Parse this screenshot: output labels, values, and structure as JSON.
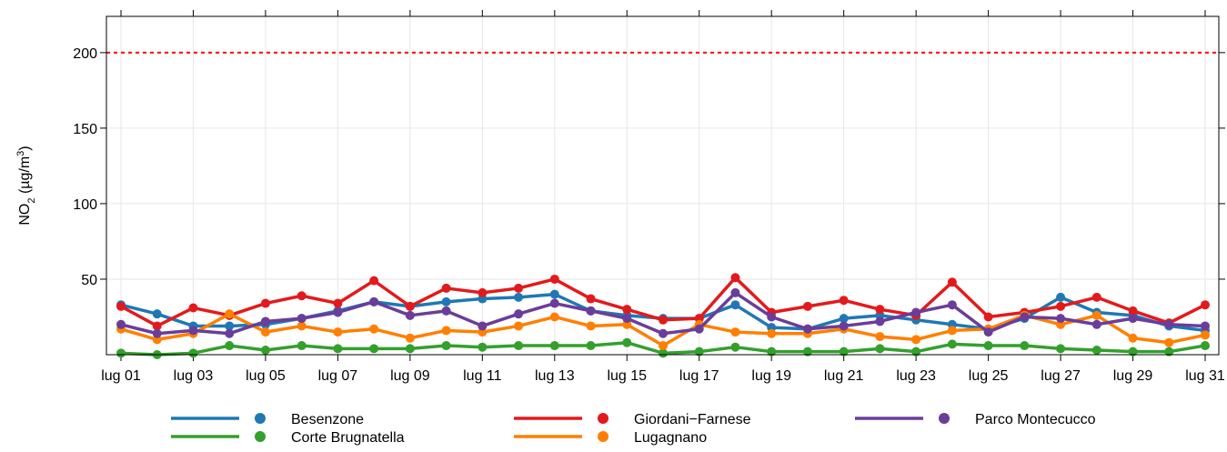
{
  "chart_data": {
    "type": "line",
    "y_label": [
      "NO",
      "2",
      " (µg/m",
      "3",
      ")"
    ],
    "categories": [
      "lug 01",
      null,
      "lug 03",
      null,
      "lug 05",
      null,
      "lug 07",
      null,
      "lug 09",
      null,
      "lug 11",
      null,
      "lug 13",
      null,
      "lug 15",
      null,
      "lug 17",
      null,
      "lug 19",
      null,
      "lug 21",
      null,
      "lug 23",
      null,
      "lug 25",
      null,
      "lug 27",
      null,
      "lug 29",
      null,
      "lug 31"
    ],
    "series": [
      {
        "name": "Besenzone",
        "color": "#1f78b4",
        "values": [
          33,
          27,
          19,
          19,
          20,
          24,
          29,
          35,
          32,
          35,
          37,
          38,
          40,
          29,
          26,
          24,
          24,
          33,
          18,
          17,
          24,
          26,
          23,
          20,
          17,
          24,
          38,
          28,
          26,
          19,
          16
        ]
      },
      {
        "name": "Corte Brugnatella",
        "color": "#33a02c",
        "values": [
          1,
          0,
          1,
          6,
          3,
          6,
          4,
          4,
          4,
          6,
          5,
          6,
          6,
          6,
          8,
          1,
          2,
          5,
          2,
          2,
          2,
          4,
          2,
          7,
          6,
          6,
          4,
          3,
          2,
          2,
          6
        ]
      },
      {
        "name": "Giordani−Farnese",
        "color": "#e31a1c",
        "values": [
          32,
          19,
          31,
          26,
          34,
          39,
          34,
          49,
          32,
          44,
          41,
          44,
          50,
          37,
          30,
          23,
          24,
          51,
          28,
          32,
          36,
          30,
          26,
          48,
          25,
          28,
          32,
          38,
          29,
          21,
          33
        ]
      },
      {
        "name": "Lugagnano",
        "color": "#ff7f00",
        "values": [
          17,
          10,
          14,
          27,
          15,
          19,
          15,
          17,
          11,
          16,
          15,
          19,
          25,
          19,
          20,
          6,
          20,
          15,
          14,
          14,
          17,
          12,
          10,
          16,
          17,
          26,
          20,
          26,
          11,
          8,
          13
        ]
      },
      {
        "name": "Parco Montecucco",
        "color": "#6a3d9a",
        "values": [
          20,
          14,
          16,
          14,
          22,
          24,
          28,
          35,
          26,
          29,
          19,
          27,
          34,
          29,
          24,
          14,
          17,
          41,
          25,
          17,
          19,
          22,
          28,
          33,
          15,
          25,
          24,
          20,
          24,
          20,
          19
        ]
      }
    ],
    "ylim": [
      0,
      224
    ],
    "yticks": [
      50,
      100,
      150,
      200
    ],
    "grid": true,
    "hlines": [
      {
        "value": 200,
        "color": "#ff0000"
      }
    ],
    "legend": "bottom"
  }
}
